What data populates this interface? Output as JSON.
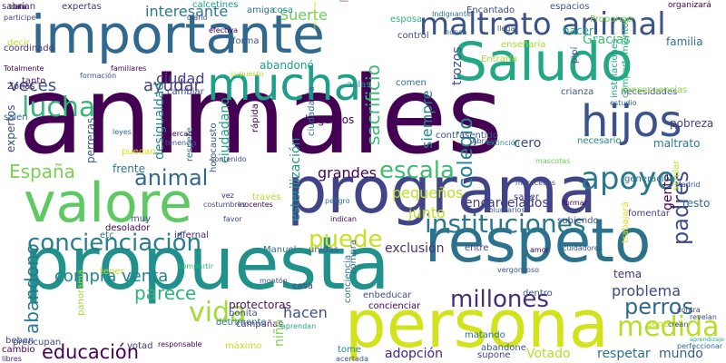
{
  "wordcloud": {
    "words": [
      {
        "text": "animales",
        "color": "#440154"
      },
      {
        "text": "importante",
        "color": "#31688e"
      },
      {
        "text": "propuesta",
        "color": "#21918c"
      },
      {
        "text": "programa",
        "color": "#414487"
      },
      {
        "text": "persona",
        "color": "#d2e21b"
      },
      {
        "text": "educación",
        "color": "#440154"
      },
      {
        "text": "respeto",
        "color": "#2c728e"
      },
      {
        "text": "Saludo",
        "color": "#22a884"
      },
      {
        "text": "mucha",
        "color": "#1f9e89"
      },
      {
        "text": "valore",
        "color": "#5ec962"
      },
      {
        "text": "hijos",
        "color": "#3b528b"
      },
      {
        "text": "maltrato animal",
        "color": "#3b528b"
      },
      {
        "text": "instituciones",
        "color": "#2a788e"
      },
      {
        "text": "concienciación",
        "color": "#287d8e"
      },
      {
        "text": "apoyo",
        "color": "#29798e"
      },
      {
        "text": "lucha",
        "color": "#35b779"
      },
      {
        "text": "millones",
        "color": "#472d7b"
      },
      {
        "text": "abandono",
        "color": "#2a788e"
      },
      {
        "text": "medida",
        "color": "#b5de2b"
      },
      {
        "text": "vida",
        "color": "#a2da37"
      },
      {
        "text": "perros",
        "color": "#31688e"
      },
      {
        "text": "escala",
        "color": "#3fbc73"
      },
      {
        "text": "puede",
        "color": "#c8e020"
      },
      {
        "text": "padres",
        "color": "#3e4a89"
      },
      {
        "text": "animal",
        "color": "#31688e"
      },
      {
        "text": "España",
        "color": "#7ad151"
      },
      {
        "text": "colegio",
        "color": "#26828e"
      },
      {
        "text": "veces",
        "color": "#3b528b"
      },
      {
        "text": "ayudar",
        "color": "#443983"
      },
      {
        "text": "interesante",
        "color": "#2a788e"
      },
      {
        "text": "Suerte",
        "color": "#6ece58"
      },
      {
        "text": "expertas",
        "color": "#46327e"
      },
      {
        "text": "sabrían",
        "color": "#482878"
      },
      {
        "text": "decir",
        "color": "#bddf26"
      },
      {
        "text": "compra venta",
        "color": "#25848e"
      },
      {
        "text": "parece",
        "color": "#2db27d"
      },
      {
        "text": "hacen",
        "color": "#3b528b"
      },
      {
        "text": "problema",
        "color": "#3e4989"
      },
      {
        "text": "adopción",
        "color": "#482475"
      },
      {
        "text": "Votado",
        "color": "#b2dd2d"
      },
      {
        "text": "respetar",
        "color": "#2e6e8e"
      },
      {
        "text": "mundo",
        "color": "#365c8d"
      },
      {
        "text": "grandes",
        "color": "#440154"
      },
      {
        "text": "pequeños",
        "color": "#bddf26"
      },
      {
        "text": "encarcelados",
        "color": "#443a83"
      },
      {
        "text": "sacrificio",
        "color": "#3aba76"
      },
      {
        "text": "siempre",
        "color": "#24868e"
      },
      {
        "text": "ciudad",
        "color": "#414487"
      },
      {
        "text": "pobreza",
        "color": "#433e85"
      },
      {
        "text": "gente",
        "color": "#440154"
      },
      {
        "text": "exclusión",
        "color": "#46337f"
      },
      {
        "text": "junto",
        "color": "#c2df23"
      },
      {
        "text": "tema",
        "color": "#46307e"
      },
      {
        "text": "familia",
        "color": "#2c738e"
      },
      {
        "text": "Gracias",
        "color": "#3fbc73"
      },
      {
        "text": "trozos",
        "color": "#3b528b"
      },
      {
        "text": "cero",
        "color": "#3f4788"
      },
      {
        "text": "frente",
        "color": "#2c728e"
      },
      {
        "text": "expertos",
        "color": "#3e4a89"
      },
      {
        "text": "perreras",
        "color": "#38588c"
      },
      {
        "text": "desigualdad",
        "color": "#23898e"
      },
      {
        "text": "ciudadano",
        "color": "#20a386"
      },
      {
        "text": "esterilización",
        "color": "#20928c"
      },
      {
        "text": "llegamos",
        "color": "#440154"
      },
      {
        "text": "hacer",
        "color": "#22a884"
      },
      {
        "text": "abandonó",
        "color": "#1fa287"
      },
      {
        "text": "maltrato",
        "color": "#297b8e"
      },
      {
        "text": "similar",
        "color": "#b8de29"
      },
      {
        "text": "resto",
        "color": "#31688e"
      },
      {
        "text": "dentro",
        "color": "#39558c"
      },
      {
        "text": "entre",
        "color": "#433d84"
      },
      {
        "text": "casa",
        "color": "#433e85"
      },
      {
        "text": "unidas",
        "color": "#38588c"
      },
      {
        "text": "Manuel",
        "color": "#2c728e"
      },
      {
        "text": "protectoras",
        "color": "#471063"
      },
      {
        "text": "campañas",
        "color": "#482475"
      },
      {
        "text": "bonita",
        "color": "#3b528b"
      },
      {
        "text": "niño",
        "color": "#7fd34e"
      },
      {
        "text": "votad",
        "color": "#443983"
      },
      {
        "text": "preocupan",
        "color": "#3e4989"
      },
      {
        "text": "cambiar",
        "color": "#3f4889"
      },
      {
        "text": "enseñaría",
        "color": "#a8db34"
      },
      {
        "text": "aulas",
        "color": "#21918c"
      },
      {
        "text": "comen",
        "color": "#2d708e"
      },
      {
        "text": "control",
        "color": "#3e4a89"
      },
      {
        "text": "tanto",
        "color": "#481c6e"
      },
      {
        "text": "Zonas",
        "color": "#481f70"
      },
      {
        "text": "salen",
        "color": "#2e6e8e"
      },
      {
        "text": "tener",
        "color": "#c0df25"
      },
      {
        "text": "beben",
        "color": "#3f4788"
      },
      {
        "text": "cambio",
        "color": "#440154"
      },
      {
        "text": "libres",
        "color": "#482173"
      },
      {
        "text": "tome",
        "color": "#24878e"
      },
      {
        "text": "acertada",
        "color": "#3b528b"
      },
      {
        "text": "supone",
        "color": "#433e85"
      },
      {
        "text": "matando",
        "color": "#2c728e"
      },
      {
        "text": "abandone",
        "color": "#39568c"
      },
      {
        "text": "enbeducar",
        "color": "#3d4d8a"
      },
      {
        "text": "concienciar",
        "color": "#440154"
      },
      {
        "text": "conciencia",
        "color": "#2a788e"
      },
      {
        "text": "compra",
        "color": "#31688e"
      },
      {
        "text": "máximo",
        "color": "#c2df23"
      },
      {
        "text": "detrimento",
        "color": "#2a778e"
      },
      {
        "text": "panorama",
        "color": "#a2da37"
      },
      {
        "text": "etc",
        "color": "#2c728e"
      },
      {
        "text": "muy",
        "color": "#3b528b"
      },
      {
        "text": "infernal",
        "color": "#482475"
      },
      {
        "text": "desolador",
        "color": "#440154"
      },
      {
        "text": "saber",
        "color": "#433e85"
      },
      {
        "text": "subiendo",
        "color": "#3b528b"
      },
      {
        "text": "fomentar",
        "color": "#433e85"
      },
      {
        "text": "trabajará",
        "color": "#d8e219"
      },
      {
        "text": "necesario",
        "color": "#25858e"
      },
      {
        "text": "generación",
        "color": "#2c728e"
      },
      {
        "text": "necesidades",
        "color": "#3b528b"
      },
      {
        "text": "crianza",
        "color": "#39568c"
      },
      {
        "text": "consecuencias",
        "color": "#8fd744"
      },
      {
        "text": "instalaciones",
        "color": "#1fa088"
      },
      {
        "text": "comportamientos",
        "color": "#29af7f"
      },
      {
        "text": "Propongo",
        "color": "#7ad151"
      },
      {
        "text": "organizará",
        "color": "#440154"
      },
      {
        "text": "espacios",
        "color": "#3b528b"
      },
      {
        "text": "Encantado",
        "color": "#3e4989"
      },
      {
        "text": "coordinado",
        "color": "#46337f"
      },
      {
        "text": "general",
        "color": "#c8e020"
      },
      {
        "text": "pipí",
        "color": "#3b528b"
      },
      {
        "text": "Entraría",
        "color": "#a5db36"
      },
      {
        "text": "rápida",
        "color": "#440154"
      },
      {
        "text": "contrasentido",
        "color": "#3b528b"
      },
      {
        "text": "puedan",
        "color": "#dde318"
      },
      {
        "text": "respete",
        "color": "#2d708e"
      },
      {
        "text": "holocausto",
        "color": "#39558c"
      },
      {
        "text": "ciudadanía",
        "color": "#2c728e"
      },
      {
        "text": "responsabilidad",
        "color": "#c8e020"
      },
      {
        "text": "través",
        "color": "#b5de2b"
      },
      {
        "text": "esposa",
        "color": "#2db27d"
      },
      {
        "text": "amiga",
        "color": "#2c728e"
      },
      {
        "text": "calcetines",
        "color": "#1f9e89"
      },
      {
        "text": "cosa",
        "color": "#21918c"
      },
      {
        "text": "forma",
        "color": "#3b528b"
      },
      {
        "text": "efectiva",
        "color": "#440154"
      },
      {
        "text": "diario",
        "color": "#3e4989"
      },
      {
        "text": "participe",
        "color": "#433e85"
      },
      {
        "text": "Totalmente",
        "color": "#440154"
      },
      {
        "text": "formación",
        "color": "#3b528b"
      },
      {
        "text": "familiares",
        "color": "#440154"
      },
      {
        "text": "tenencia",
        "color": "#3b528b"
      },
      {
        "text": "leyes",
        "color": "#31688e"
      },
      {
        "text": "mercados",
        "color": "#440154"
      },
      {
        "text": "contenido",
        "color": "#3b528b"
      },
      {
        "text": "vez",
        "color": "#482475"
      },
      {
        "text": "favor",
        "color": "#3e4a89"
      },
      {
        "text": "indican",
        "color": "#440154"
      },
      {
        "text": "peligro",
        "color": "#2c728e"
      },
      {
        "text": "Abrazo",
        "color": "#39568c"
      },
      {
        "text": "mereceeos",
        "color": "#3e4989"
      },
      {
        "text": "Madrid",
        "color": "#3b528b"
      },
      {
        "text": "estudio",
        "color": "#31688e"
      },
      {
        "text": "hacerlos",
        "color": "#440154"
      },
      {
        "text": "nunca",
        "color": "#31688e"
      },
      {
        "text": "llegar",
        "color": "#39558c"
      },
      {
        "text": "montón",
        "color": "#3b528b"
      },
      {
        "text": "aprendan",
        "color": "#22a884"
      },
      {
        "text": "responsable",
        "color": "#440154"
      },
      {
        "text": "vergonzoso",
        "color": "#3b528b"
      },
      {
        "text": "revelan",
        "color": "#3e4989"
      },
      {
        "text": "contra",
        "color": "#433e85"
      },
      {
        "text": "amor",
        "color": "#440154"
      },
      {
        "text": "Indignante",
        "color": "#2c728e"
      },
      {
        "text": "cuidadores",
        "color": "#3b528b"
      },
      {
        "text": "inocentes",
        "color": "#440154"
      },
      {
        "text": "costumbres",
        "color": "#3e4989"
      },
      {
        "text": "compartir",
        "color": "#35b779"
      },
      {
        "text": "supuesto",
        "color": "#b5de2b"
      },
      {
        "text": "voluntarios",
        "color": "#3b528b"
      },
      {
        "text": "extinción",
        "color": "#21918c"
      },
      {
        "text": "mascotas",
        "color": "#6ece58"
      },
      {
        "text": "formar",
        "color": "#440154"
      },
      {
        "text": "crean",
        "color": "#3b528b"
      },
      {
        "text": "perfeccionar",
        "color": "#31688e"
      },
      {
        "text": "aprendizaje",
        "color": "#22a884"
      },
      {
        "text": "Hola",
        "color": "#c8e020"
      },
      {
        "text": "claro",
        "color": "#440154"
      },
      {
        "text": "toda",
        "color": "#3e4989"
      }
    ]
  }
}
